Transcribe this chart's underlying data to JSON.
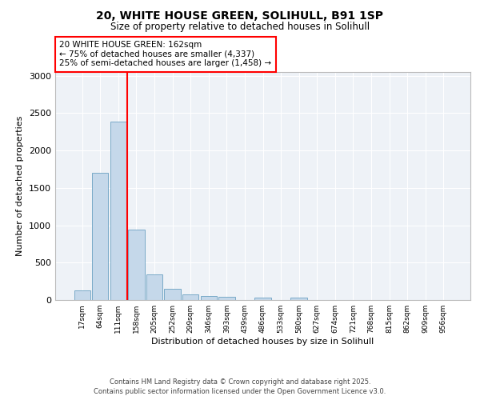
{
  "title": "20, WHITE HOUSE GREEN, SOLIHULL, B91 1SP",
  "subtitle": "Size of property relative to detached houses in Solihull",
  "xlabel": "Distribution of detached houses by size in Solihull",
  "ylabel": "Number of detached properties",
  "footer_line1": "Contains HM Land Registry data © Crown copyright and database right 2025.",
  "footer_line2": "Contains public sector information licensed under the Open Government Licence v3.0.",
  "annotation_line1": "20 WHITE HOUSE GREEN: 162sqm",
  "annotation_line2": "← 75% of detached houses are smaller (4,337)",
  "annotation_line3": "25% of semi-detached houses are larger (1,458) →",
  "bar_color": "#c5d8ea",
  "bar_edge_color": "#7aaac8",
  "categories": [
    "17sqm",
    "64sqm",
    "111sqm",
    "158sqm",
    "205sqm",
    "252sqm",
    "299sqm",
    "346sqm",
    "393sqm",
    "439sqm",
    "486sqm",
    "533sqm",
    "580sqm",
    "627sqm",
    "674sqm",
    "721sqm",
    "768sqm",
    "815sqm",
    "862sqm",
    "909sqm",
    "956sqm"
  ],
  "values": [
    130,
    1700,
    2390,
    940,
    340,
    145,
    80,
    55,
    45,
    0,
    30,
    0,
    30,
    0,
    0,
    0,
    0,
    0,
    0,
    0,
    0
  ],
  "ylim": [
    0,
    3050
  ],
  "yticks": [
    0,
    500,
    1000,
    1500,
    2000,
    2500,
    3000
  ],
  "red_line_index": 2.5,
  "background_color": "#ffffff",
  "plot_bg_color": "#eef2f7",
  "grid_color": "#ffffff"
}
